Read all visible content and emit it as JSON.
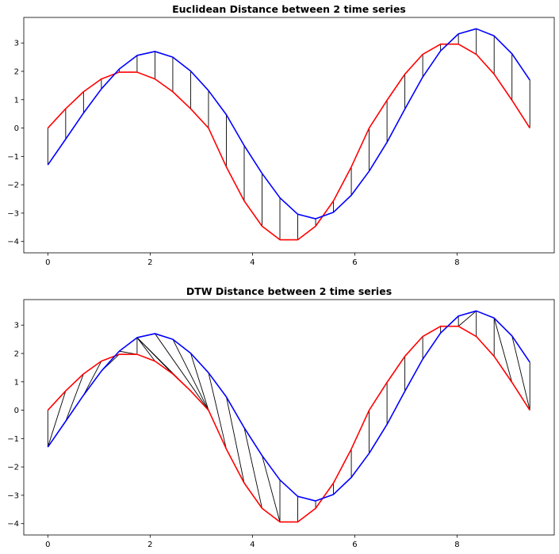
{
  "chart_data": [
    {
      "type": "line",
      "title": "Euclidean Distance between 2 time series",
      "xlim": [
        -0.47,
        9.9
      ],
      "ylim": [
        -4.4,
        3.9
      ],
      "x_ticks": [
        0,
        2,
        4,
        6,
        8
      ],
      "y_ticks": [
        -4,
        -3,
        -2,
        -1,
        0,
        1,
        2,
        3
      ],
      "x": [
        0,
        0.349,
        0.698,
        1.047,
        1.396,
        1.745,
        2.094,
        2.443,
        2.792,
        3.141,
        3.49,
        3.839,
        4.188,
        4.537,
        4.886,
        5.235,
        5.584,
        5.933,
        6.282,
        6.631,
        6.98,
        7.329,
        7.678,
        8.027,
        8.376,
        8.725,
        9.074,
        9.423
      ],
      "series": [
        {
          "name": "",
          "color": "#ff0000",
          "values": [
            0,
            0.68,
            1.28,
            1.73,
            1.97,
            1.97,
            1.73,
            1.28,
            0.68,
            0,
            -1.37,
            -2.57,
            -3.46,
            -3.94,
            -3.94,
            -3.46,
            -2.57,
            -1.37,
            0,
            0.98,
            1.9,
            2.6,
            2.96,
            2.96,
            2.6,
            1.9,
            0.98,
            0
          ]
        },
        {
          "name": "",
          "color": "#0000ff",
          "values": [
            -1.3,
            -0.39,
            0.53,
            1.38,
            2.08,
            2.56,
            2.7,
            2.5,
            2.01,
            1.32,
            0.47,
            -0.62,
            -1.6,
            -2.46,
            -3.04,
            -3.2,
            -2.97,
            -2.37,
            -1.52,
            -0.5,
            0.67,
            1.8,
            2.72,
            3.32,
            3.5,
            3.25,
            2.62,
            1.69
          ]
        }
      ],
      "connections": "index-to-index"
    },
    {
      "type": "line",
      "title": "DTW Distance between 2 time series",
      "xlim": [
        -0.47,
        9.9
      ],
      "ylim": [
        -4.4,
        3.9
      ],
      "x_ticks": [
        0,
        2,
        4,
        6,
        8
      ],
      "y_ticks": [
        -4,
        -3,
        -2,
        -1,
        0,
        1,
        2,
        3
      ],
      "x": [
        0,
        0.349,
        0.698,
        1.047,
        1.396,
        1.745,
        2.094,
        2.443,
        2.792,
        3.141,
        3.49,
        3.839,
        4.188,
        4.537,
        4.886,
        5.235,
        5.584,
        5.933,
        6.282,
        6.631,
        6.98,
        7.329,
        7.678,
        8.027,
        8.376,
        8.725,
        9.074,
        9.423
      ],
      "series": [
        {
          "name": "",
          "color": "#ff0000",
          "values": [
            0,
            0.68,
            1.28,
            1.73,
            1.97,
            1.97,
            1.73,
            1.28,
            0.68,
            0,
            -1.37,
            -2.57,
            -3.46,
            -3.94,
            -3.94,
            -3.46,
            -2.57,
            -1.37,
            0,
            0.98,
            1.9,
            2.6,
            2.96,
            2.96,
            2.6,
            1.9,
            0.98,
            0
          ]
        },
        {
          "name": "",
          "color": "#0000ff",
          "values": [
            -1.3,
            -0.39,
            0.53,
            1.38,
            2.08,
            2.56,
            2.7,
            2.5,
            2.01,
            1.32,
            0.47,
            -0.62,
            -1.6,
            -2.46,
            -3.04,
            -3.2,
            -2.97,
            -2.37,
            -1.52,
            -0.5,
            0.67,
            1.8,
            2.72,
            3.32,
            3.5,
            3.25,
            2.62,
            1.69
          ]
        }
      ],
      "warping_path": [
        [
          0,
          0
        ],
        [
          1,
          0
        ],
        [
          2,
          1
        ],
        [
          3,
          2
        ],
        [
          4,
          3
        ],
        [
          5,
          4
        ],
        [
          5,
          5
        ],
        [
          6,
          5
        ],
        [
          7,
          5
        ],
        [
          8,
          5
        ],
        [
          9,
          6
        ],
        [
          9,
          7
        ],
        [
          9,
          8
        ],
        [
          10,
          9
        ],
        [
          11,
          10
        ],
        [
          12,
          11
        ],
        [
          13,
          12
        ],
        [
          13,
          13
        ],
        [
          14,
          14
        ],
        [
          15,
          15
        ],
        [
          16,
          16
        ],
        [
          17,
          17
        ],
        [
          18,
          18
        ],
        [
          19,
          19
        ],
        [
          20,
          20
        ],
        [
          21,
          21
        ],
        [
          22,
          22
        ],
        [
          23,
          23
        ],
        [
          23,
          24
        ],
        [
          24,
          24
        ],
        [
          25,
          25
        ],
        [
          26,
          25
        ],
        [
          27,
          26
        ],
        [
          27,
          27
        ]
      ]
    }
  ]
}
